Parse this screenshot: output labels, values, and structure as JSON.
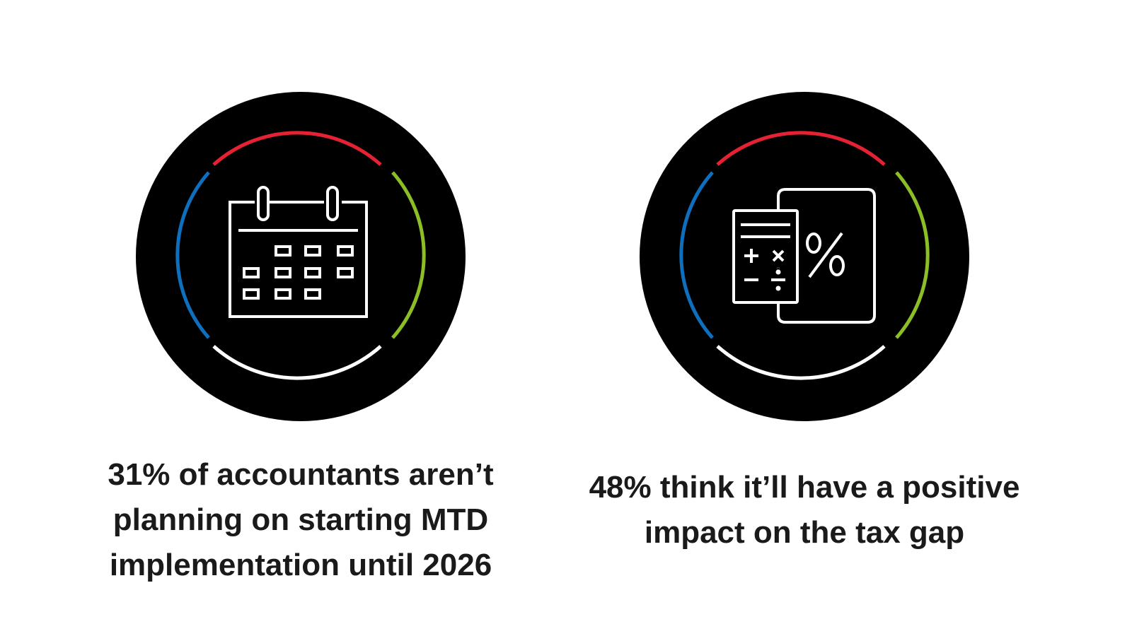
{
  "colors": {
    "background": "#ffffff",
    "badge_fill": "#000000",
    "arc_top": "#e52233",
    "arc_left": "#0f6fbf",
    "arc_right": "#8cbf26",
    "arc_bottom": "#ffffff",
    "icon_stroke": "#ffffff",
    "text": "#1a1a1a"
  },
  "stats": [
    {
      "icon": "calendar-icon",
      "lines": [
        "31% of accountants aren’t",
        "planning on starting MTD",
        "implementation until 2026"
      ]
    },
    {
      "icon": "calculator-percent-icon",
      "lines": [
        "48% think it’ll have a positive",
        "impact on the tax gap"
      ]
    }
  ]
}
